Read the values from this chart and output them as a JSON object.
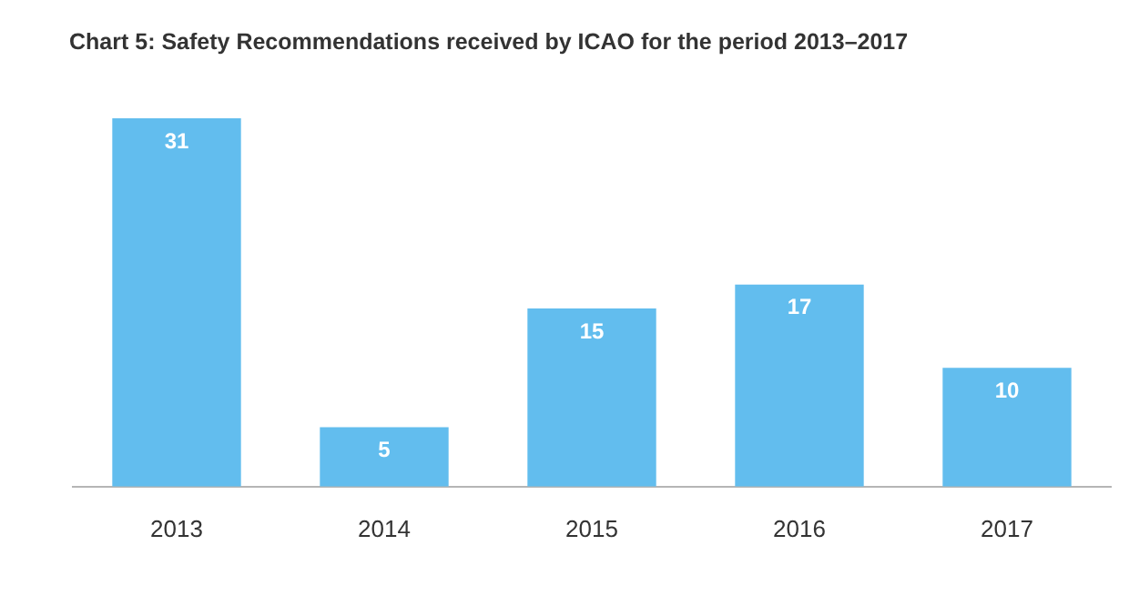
{
  "chart_data": {
    "type": "bar",
    "title": "Chart 5: Safety Recommendations received by ICAO for the period 2013–2017",
    "categories": [
      "2013",
      "2014",
      "2015",
      "2016",
      "2017"
    ],
    "values": [
      31,
      5,
      15,
      17,
      10
    ],
    "color": "#62bdee",
    "data_labels": true,
    "grid": false,
    "legend": false
  }
}
